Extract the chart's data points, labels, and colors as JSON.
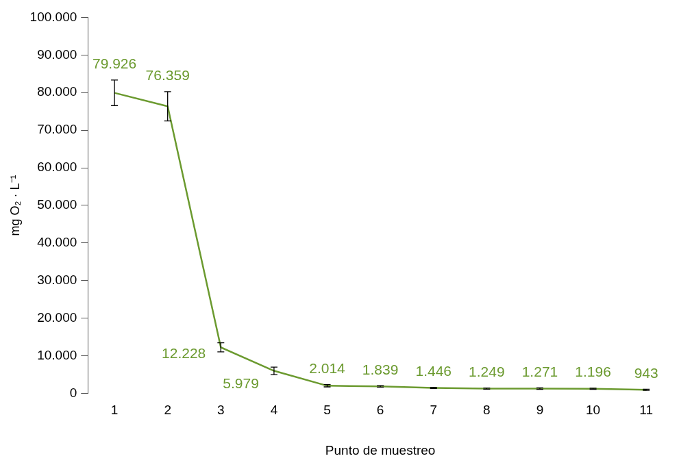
{
  "chart_data": {
    "type": "line",
    "xlabel": "Punto de muestreo",
    "ylabel": "mg O₂ · L⁻¹",
    "categories": [
      "1",
      "2",
      "3",
      "4",
      "5",
      "6",
      "7",
      "8",
      "9",
      "10",
      "11"
    ],
    "series": [
      {
        "color": "#6b9a2f",
        "values": [
          79926,
          76359,
          12228,
          5979,
          2014,
          1839,
          1446,
          1249,
          1271,
          1196,
          943
        ],
        "errors": [
          3400,
          3900,
          1200,
          1000,
          300,
          200,
          150,
          150,
          200,
          150,
          150
        ],
        "value_labels": [
          "79.926",
          "76.359",
          "12.228",
          "5.979",
          "2.014",
          "1.839",
          "1.446",
          "1.249",
          "1.271",
          "1.196",
          "943"
        ]
      }
    ],
    "ylim": [
      0,
      100000
    ],
    "yticks": [
      {
        "value": 0,
        "label": "0"
      },
      {
        "value": 10000,
        "label": "10.000"
      },
      {
        "value": 20000,
        "label": "20.000"
      },
      {
        "value": 30000,
        "label": "30.000"
      },
      {
        "value": 40000,
        "label": "40.000"
      },
      {
        "value": 50000,
        "label": "50.000"
      },
      {
        "value": 60000,
        "label": "60.000"
      },
      {
        "value": 70000,
        "label": "70.000"
      },
      {
        "value": 80000,
        "label": "80.000"
      },
      {
        "value": 90000,
        "label": "90.000"
      },
      {
        "value": 100000,
        "label": "100.000"
      }
    ],
    "grid": false,
    "legend": false,
    "marker": "none",
    "line_style": "solid"
  }
}
